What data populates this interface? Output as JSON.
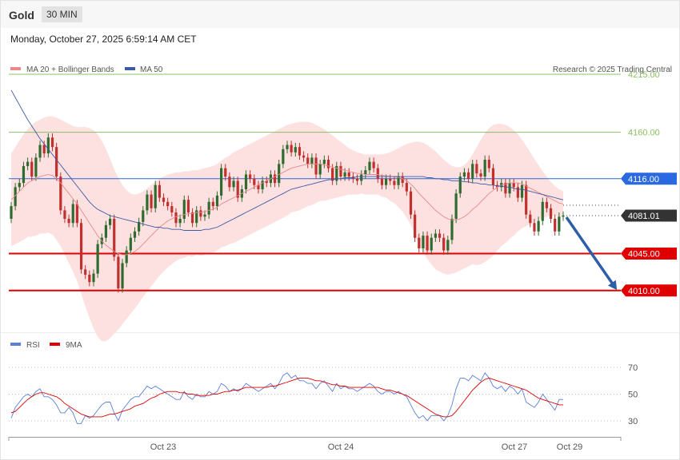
{
  "header": {
    "title": "Gold",
    "timeframe": "30 MIN",
    "date": "Monday, October 27, 2025 6:59:14 AM CET"
  },
  "legend": {
    "ma20_label": "MA 20 + Bollinger Bands",
    "ma50_label": "MA 50",
    "copyright": "Research © 2025 Trading Central",
    "rsi_label": "RSI",
    "rsi_ma_label": "9MA"
  },
  "colors": {
    "up": "#2f6b2f",
    "down": "#c0302f",
    "band": "#fde0e0",
    "ma20": "#e88a8a",
    "ma50": "#3b5ba5",
    "pivot": "#2a69e0",
    "support": "#e00000",
    "resistance": "#8bc064",
    "current": "#333333",
    "arrow": "#2d5ea8",
    "rsi": "#5b7fd6",
    "rsi_ma": "#e00000"
  },
  "chart_data": [
    {
      "type": "candlestick",
      "ylim": [
        3975,
        4240
      ],
      "x_tick_labels": [
        "Oct 23",
        "Oct 24",
        "Oct 27",
        "Oct 29"
      ],
      "levels": [
        {
          "value": 4215.0,
          "label": "4215.00",
          "kind": "resistance"
        },
        {
          "value": 4160.0,
          "label": "4160.00",
          "kind": "resistance"
        },
        {
          "value": 4116.0,
          "label": "4116.00",
          "kind": "pivot"
        },
        {
          "value": 4081.01,
          "label": "4081.01",
          "kind": "current"
        },
        {
          "value": 4045.0,
          "label": "4045.00",
          "kind": "support"
        },
        {
          "value": 4010.0,
          "label": "4010.00",
          "kind": "support"
        }
      ],
      "close": [
        4090,
        4108,
        4112,
        4128,
        4132,
        4118,
        4136,
        4148,
        4140,
        4155,
        4146,
        4118,
        4086,
        4078,
        4074,
        4092,
        4074,
        4030,
        4025,
        4018,
        4026,
        4054,
        4060,
        4072,
        4078,
        4042,
        4012,
        4036,
        4048,
        4060,
        4066,
        4075,
        4086,
        4101,
        4088,
        4110,
        4098,
        4094,
        4090,
        4084,
        4074,
        4078,
        4096,
        4084,
        4074,
        4086,
        4080,
        4082,
        4094,
        4090,
        4100,
        4126,
        4118,
        4108,
        4114,
        4098,
        4106,
        4120,
        4116,
        4110,
        4106,
        4114,
        4112,
        4120,
        4112,
        4130,
        4144,
        4148,
        4141,
        4146,
        4138,
        4136,
        4130,
        4136,
        4120,
        4130,
        4134,
        4126,
        4114,
        4128,
        4118,
        4122,
        4118,
        4116,
        4114,
        4120,
        4124,
        4132,
        4126,
        4116,
        4110,
        4116,
        4114,
        4110,
        4118,
        4112,
        4104,
        4082,
        4060,
        4050,
        4062,
        4048,
        4060,
        4064,
        4060,
        4048,
        4058,
        4078,
        4102,
        4118,
        4122,
        4116,
        4130,
        4121,
        4118,
        4134,
        4126,
        4110,
        4108,
        4112,
        4102,
        4112,
        4108,
        4098,
        4110,
        4082,
        4074,
        4066,
        4076,
        4094,
        4088,
        4078,
        4066,
        4080,
        4081.01
      ],
      "open": [
        4078,
        4090,
        4108,
        4112,
        4128,
        4132,
        4118,
        4136,
        4148,
        4140,
        4155,
        4146,
        4118,
        4086,
        4078,
        4074,
        4092,
        4074,
        4030,
        4025,
        4018,
        4026,
        4054,
        4060,
        4072,
        4078,
        4042,
        4012,
        4036,
        4048,
        4060,
        4066,
        4075,
        4086,
        4101,
        4088,
        4110,
        4098,
        4094,
        4090,
        4084,
        4074,
        4078,
        4096,
        4084,
        4074,
        4086,
        4080,
        4082,
        4094,
        4090,
        4100,
        4126,
        4118,
        4108,
        4114,
        4098,
        4106,
        4120,
        4116,
        4110,
        4106,
        4114,
        4112,
        4120,
        4112,
        4130,
        4144,
        4148,
        4141,
        4146,
        4138,
        4136,
        4130,
        4136,
        4120,
        4130,
        4134,
        4126,
        4114,
        4128,
        4118,
        4122,
        4118,
        4116,
        4114,
        4120,
        4124,
        4132,
        4126,
        4116,
        4110,
        4116,
        4114,
        4110,
        4118,
        4112,
        4104,
        4082,
        4060,
        4050,
        4062,
        4048,
        4060,
        4064,
        4060,
        4048,
        4058,
        4078,
        4102,
        4118,
        4122,
        4116,
        4130,
        4121,
        4118,
        4134,
        4126,
        4110,
        4108,
        4112,
        4102,
        4112,
        4108,
        4098,
        4110,
        4082,
        4074,
        4066,
        4076,
        4094,
        4088,
        4078,
        4066,
        4080
      ],
      "ma20": [
        4096,
        4100,
        4104,
        4108,
        4112,
        4114,
        4116,
        4118,
        4119,
        4120,
        4119,
        4116,
        4112,
        4107,
        4102,
        4097,
        4092,
        4086,
        4080,
        4074,
        4068,
        4062,
        4057,
        4053,
        4050,
        4047,
        4045,
        4044,
        4044,
        4045,
        4047,
        4050,
        4054,
        4058,
        4062,
        4066,
        4070,
        4073,
        4076,
        4078,
        4080,
        4081,
        4082,
        4083,
        4083,
        4084,
        4084,
        4085,
        4086,
        4087,
        4089,
        4092,
        4094,
        4096,
        4098,
        4100,
        4102,
        4104,
        4106,
        4108,
        4110,
        4112,
        4114,
        4116,
        4118,
        4120,
        4122,
        4124,
        4126,
        4127,
        4128,
        4129,
        4130,
        4130,
        4130,
        4130,
        4129,
        4128,
        4127,
        4126,
        4125,
        4124,
        4123,
        4122,
        4121,
        4121,
        4120,
        4120,
        4120,
        4120,
        4119,
        4119,
        4118,
        4118,
        4117,
        4116,
        4114,
        4111,
        4107,
        4102,
        4098,
        4094,
        4090,
        4086,
        4083,
        4080,
        4078,
        4077,
        4077,
        4078,
        4080,
        4083,
        4087,
        4090,
        4094,
        4098,
        4102,
        4105,
        4108,
        4110,
        4111,
        4112,
        4112,
        4112,
        4111,
        4109,
        4107,
        4105,
        4103,
        4101,
        4099,
        4097,
        4095,
        4093,
        4092
      ],
      "ma20_upper": [
        4140,
        4146,
        4152,
        4158,
        4163,
        4167,
        4170,
        4172,
        4174,
        4175,
        4175,
        4174,
        4172,
        4170,
        4168,
        4166,
        4165,
        4165,
        4165,
        4164,
        4162,
        4158,
        4152,
        4144,
        4135,
        4125,
        4117,
        4110,
        4105,
        4102,
        4101,
        4102,
        4104,
        4107,
        4110,
        4113,
        4116,
        4118,
        4120,
        4121,
        4122,
        4122,
        4123,
        4123,
        4124,
        4124,
        4125,
        4126,
        4127,
        4128,
        4130,
        4133,
        4136,
        4138,
        4141,
        4143,
        4145,
        4147,
        4149,
        4151,
        4153,
        4155,
        4157,
        4159,
        4161,
        4163,
        4165,
        4167,
        4168,
        4169,
        4170,
        4170,
        4170,
        4169,
        4167,
        4165,
        4163,
        4160,
        4157,
        4154,
        4151,
        4148,
        4145,
        4143,
        4141,
        4140,
        4139,
        4139,
        4139,
        4139,
        4139,
        4140,
        4141,
        4143,
        4145,
        4147,
        4149,
        4150,
        4151,
        4151,
        4150,
        4148,
        4145,
        4142,
        4138,
        4134,
        4131,
        4128,
        4127,
        4127,
        4129,
        4133,
        4139,
        4146,
        4153,
        4159,
        4164,
        4167,
        4168,
        4168,
        4167,
        4165,
        4162,
        4158,
        4153,
        4147,
        4141,
        4135,
        4129,
        4123,
        4118,
        4113,
        4109,
        4106,
        4104
      ],
      "ma20_lower": [
        4052,
        4054,
        4056,
        4058,
        4061,
        4061,
        4062,
        4064,
        4064,
        4065,
        4063,
        4058,
        4052,
        4044,
        4036,
        4028,
        4019,
        4007,
        3995,
        3984,
        3974,
        3966,
        3962,
        3962,
        3965,
        3969,
        3973,
        3978,
        3983,
        3988,
        3993,
        3998,
        4004,
        4009,
        4014,
        4019,
        4024,
        4028,
        4032,
        4035,
        4038,
        4040,
        4041,
        4043,
        4042,
        4044,
        4043,
        4044,
        4045,
        4046,
        4048,
        4051,
        4052,
        4054,
        4055,
        4057,
        4059,
        4061,
        4063,
        4065,
        4067,
        4069,
        4071,
        4073,
        4075,
        4077,
        4079,
        4081,
        4084,
        4085,
        4086,
        4088,
        4090,
        4091,
        4093,
        4095,
        4095,
        4096,
        4097,
        4098,
        4099,
        4100,
        4101,
        4101,
        4101,
        4102,
        4101,
        4101,
        4101,
        4101,
        4099,
        4098,
        4095,
        4093,
        4089,
        4085,
        4079,
        4072,
        4063,
        4053,
        4046,
        4040,
        4035,
        4030,
        4028,
        4026,
        4025,
        4026,
        4027,
        4029,
        4031,
        4033,
        4035,
        4034,
        4035,
        4037,
        4040,
        4043,
        4048,
        4052,
        4055,
        4059,
        4062,
        4066,
        4069,
        4071,
        4073,
        4075,
        4077,
        4079,
        4080,
        4081,
        4081,
        4080,
        4080
      ],
      "ma50": [
        4200,
        4193,
        4186,
        4179,
        4172,
        4166,
        4160,
        4154,
        4149,
        4144,
        4139,
        4134,
        4129,
        4124,
        4119,
        4114,
        4109,
        4104,
        4099,
        4094,
        4090,
        4087,
        4085,
        4083,
        4081,
        4080,
        4079,
        4078,
        4077,
        4076,
        4075,
        4074,
        4073,
        4072,
        4071,
        4070,
        4070,
        4069,
        4069,
        4068,
        4068,
        4068,
        4067,
        4067,
        4067,
        4067,
        4067,
        4068,
        4068,
        4069,
        4070,
        4072,
        4074,
        4076,
        4078,
        4080,
        4082,
        4084,
        4086,
        4088,
        4090,
        4092,
        4094,
        4096,
        4098,
        4100,
        4102,
        4104,
        4106,
        4107,
        4108,
        4109,
        4110,
        4111,
        4112,
        4113,
        4114,
        4115,
        4115,
        4116,
        4116,
        4117,
        4117,
        4117,
        4118,
        4118,
        4118,
        4118,
        4118,
        4118,
        4118,
        4118,
        4118,
        4118,
        4118,
        4118,
        4118,
        4118,
        4118,
        4118,
        4118,
        4117,
        4117,
        4116,
        4116,
        4115,
        4115,
        4114,
        4114,
        4114,
        4113,
        4113,
        4112,
        4112,
        4111,
        4111,
        4110,
        4110,
        4109,
        4109,
        4108,
        4108,
        4107,
        4106,
        4106,
        4105,
        4104,
        4103,
        4102,
        4101,
        4100,
        4099,
        4098,
        4097,
        4096
      ]
    },
    {
      "type": "line",
      "ylim": [
        18,
        82
      ],
      "y_ticks": [
        30,
        50,
        70
      ],
      "series": [
        {
          "name": "RSI",
          "values": [
            32,
            40,
            44,
            48,
            50,
            48,
            52,
            54,
            48,
            48,
            46,
            42,
            36,
            36,
            40,
            36,
            28,
            28,
            34,
            32,
            34,
            38,
            42,
            44,
            44,
            36,
            30,
            38,
            42,
            46,
            48,
            48,
            52,
            56,
            54,
            56,
            54,
            52,
            50,
            48,
            46,
            46,
            52,
            48,
            46,
            50,
            48,
            48,
            52,
            50,
            52,
            58,
            56,
            52,
            54,
            52,
            54,
            58,
            56,
            54,
            52,
            54,
            56,
            58,
            54,
            58,
            64,
            66,
            62,
            64,
            60,
            60,
            58,
            58,
            54,
            58,
            60,
            56,
            52,
            58,
            54,
            56,
            54,
            54,
            52,
            54,
            56,
            58,
            56,
            52,
            50,
            52,
            52,
            50,
            52,
            50,
            48,
            42,
            36,
            32,
            34,
            30,
            34,
            34,
            34,
            30,
            34,
            42,
            54,
            62,
            62,
            60,
            64,
            62,
            60,
            66,
            62,
            56,
            54,
            56,
            52,
            56,
            54,
            50,
            54,
            44,
            42,
            40,
            44,
            50,
            46,
            42,
            38,
            46,
            46
          ]
        },
        {
          "name": "9MA",
          "values": [
            36,
            37,
            40,
            43,
            46,
            48,
            50,
            51,
            51,
            50,
            49,
            48,
            46,
            43,
            41,
            39,
            37,
            35,
            34,
            33,
            33,
            33,
            33,
            34,
            35,
            35,
            36,
            37,
            38,
            39,
            41,
            42,
            43,
            45,
            47,
            48,
            50,
            51,
            52,
            52,
            52,
            51,
            51,
            50,
            50,
            49,
            49,
            49,
            49,
            50,
            50,
            51,
            52,
            52,
            53,
            53,
            54,
            55,
            55,
            55,
            55,
            55,
            55,
            56,
            56,
            57,
            58,
            59,
            60,
            61,
            62,
            62,
            62,
            61,
            60,
            60,
            59,
            58,
            57,
            57,
            56,
            56,
            55,
            55,
            55,
            55,
            55,
            55,
            55,
            55,
            54,
            53,
            53,
            52,
            51,
            50,
            49,
            47,
            45,
            43,
            41,
            39,
            37,
            35,
            34,
            33,
            33,
            34,
            37,
            41,
            45,
            49,
            53,
            56,
            59,
            61,
            62,
            61,
            60,
            59,
            58,
            57,
            56,
            55,
            54,
            53,
            51,
            49,
            47,
            46,
            45,
            44,
            43,
            42,
            42
          ]
        }
      ]
    }
  ]
}
